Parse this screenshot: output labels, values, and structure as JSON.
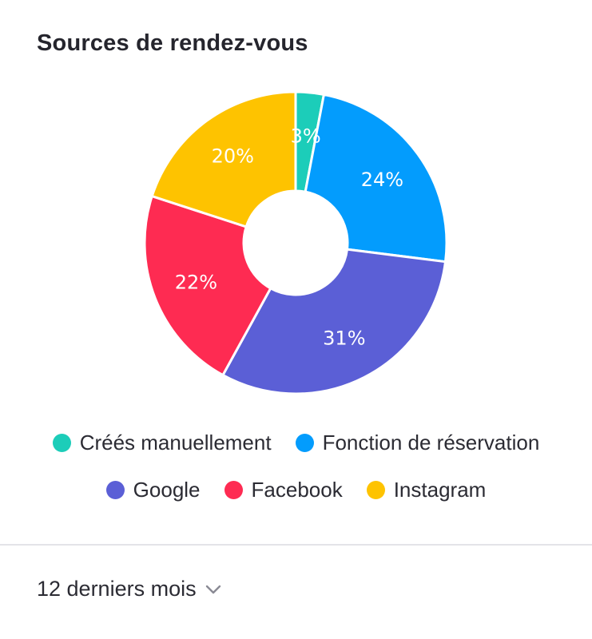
{
  "card": {
    "title": "Sources de rendez-vous"
  },
  "chart_data": {
    "type": "pie",
    "donut": true,
    "title": "Sources de rendez-vous",
    "unit": "%",
    "legend_position": "bottom",
    "slices": [
      {
        "name": "Créés manuellement",
        "value": 3,
        "label": "3%",
        "color": "#1ccdb9"
      },
      {
        "name": "Fonction de réservation",
        "value": 24,
        "label": "24%",
        "color": "#039cfd"
      },
      {
        "name": "Google",
        "value": 31,
        "label": "31%",
        "color": "#5b5fd6"
      },
      {
        "name": "Facebook",
        "value": 22,
        "label": "22%",
        "color": "#fe2b52"
      },
      {
        "name": "Instagram",
        "value": 20,
        "label": "20%",
        "color": "#fec300"
      }
    ]
  },
  "legend": {
    "rows": [
      [
        {
          "label": "Créés manuellement",
          "color": "#1ccdb9"
        },
        {
          "label": "Fonction de réservation",
          "color": "#039cfd"
        }
      ],
      [
        {
          "label": "Google",
          "color": "#5b5fd6"
        },
        {
          "label": "Facebook",
          "color": "#fe2b52"
        },
        {
          "label": "Instagram",
          "color": "#fec300"
        }
      ]
    ]
  },
  "footer": {
    "period_label": "12 derniers mois",
    "chevron_icon": "chevron-down-icon"
  }
}
